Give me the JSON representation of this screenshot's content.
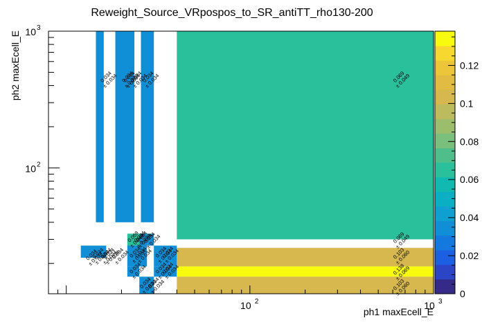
{
  "chart_data": {
    "type": "heatmap",
    "title": "Reweight_Source_VRpospos_to_SR_antiTT_rho130-200",
    "xlabel": "ph1 maxEcell_E",
    "ylabel": "ph2 maxEcell_E",
    "x_scale": "log",
    "y_scale": "log",
    "xlim": [
      8,
      1000
    ],
    "ylim": [
      12,
      1000
    ],
    "x_ticks": [
      {
        "value": 100,
        "label": "10",
        "exp": "2"
      },
      {
        "value": 1000,
        "label": "10",
        "exp": "3"
      }
    ],
    "y_ticks": [
      {
        "value": 100,
        "label": "10",
        "exp": "2"
      },
      {
        "value": 1000,
        "label": "10",
        "exp": "3"
      }
    ],
    "zlim": [
      0,
      0.138
    ],
    "z_ticks": [
      "0",
      "0.02",
      "0.04",
      "0.06",
      "0.08",
      "0.1",
      "0.12"
    ],
    "grid": false,
    "colorbar": "right",
    "cells": [
      {
        "x": [
          14.5,
          16.0
        ],
        "y": [
          40,
          1000
        ],
        "value": 0.034,
        "label": "0.034",
        "err": "± 0.034"
      },
      {
        "x": [
          18.5,
          23.5
        ],
        "y": [
          40,
          1000
        ],
        "value": 0.034,
        "label": "0.034",
        "err": "± 0.034"
      },
      {
        "x": [
          25.5,
          30.0
        ],
        "y": [
          40,
          1000
        ],
        "value": 0.034,
        "label": "0.034",
        "err": "± 0.034"
      },
      {
        "x": [
          40,
          1000
        ],
        "y": [
          30,
          1000
        ],
        "value": 0.069,
        "label": "0.069",
        "err": "± 0.049"
      },
      {
        "x": [
          12.0,
          16.5
        ],
        "y": [
          22,
          27
        ],
        "value": 0.034,
        "label": "0.034",
        "err": "± 0.034"
      },
      {
        "x": [
          21.5,
          25.0
        ],
        "y": [
          27,
          33
        ],
        "value": 0.069,
        "label": "0.069",
        "err": "± 0.049"
      },
      {
        "x": [
          25.0,
          27.5
        ],
        "y": [
          27,
          33
        ],
        "value": 0.034,
        "label": "0.034",
        "err": "± 0.034"
      },
      {
        "x": [
          27.5,
          30.0
        ],
        "y": [
          27,
          33
        ],
        "value": 0.034,
        "label": "0.034",
        "err": "± 0.034"
      },
      {
        "x": [
          21.5,
          27.5
        ],
        "y": [
          19,
          27
        ],
        "value": 0.034,
        "label": "0.034",
        "err": "± 0.034"
      },
      {
        "x": [
          30.0,
          40.0
        ],
        "y": [
          19,
          27
        ],
        "value": 0.034,
        "label": "0.034",
        "err": "± 0.034"
      },
      {
        "x": [
          21.5,
          25.0
        ],
        "y": [
          16,
          19
        ],
        "value": 0.034,
        "label": "0.034",
        "err": "± 0.034"
      },
      {
        "x": [
          30.0,
          40.0
        ],
        "y": [
          16,
          19
        ],
        "value": 0.034,
        "label": "0.034",
        "err": "± 0.034"
      },
      {
        "x": [
          25.0,
          30.0
        ],
        "y": [
          12,
          16
        ],
        "value": 0.034,
        "label": "0.034",
        "err": "± 0.034"
      },
      {
        "x": [
          40,
          1000
        ],
        "y": [
          19,
          26
        ],
        "value": 0.103,
        "label": "0.103",
        "err": "± 0.060"
      },
      {
        "x": [
          40,
          1000
        ],
        "y": [
          16,
          19
        ],
        "value": 0.138,
        "label": "0.138",
        "err": "± 0.069"
      },
      {
        "x": [
          40,
          1000
        ],
        "y": [
          12,
          16
        ],
        "value": 0.103,
        "label": "0.103",
        "err": "± 0.060"
      }
    ],
    "text_labels": [
      {
        "x": 16.8,
        "y": 450,
        "label": "0.034",
        "err": "± 0.034"
      },
      {
        "x": 22.5,
        "y": 450,
        "label": "0.034",
        "err": "± 0.034"
      },
      {
        "x": 24.5,
        "y": 450,
        "label": "0.034",
        "err": "± 0.034"
      },
      {
        "x": 28.5,
        "y": 450,
        "label": "0.034",
        "err": "± 0.034"
      },
      {
        "x": 22.0,
        "y": 450,
        "label": "0.034",
        "err": "± 0.034"
      },
      {
        "x": 14.0,
        "y": 22.5,
        "label": "0.034",
        "err": "± 0.034"
      },
      {
        "x": 15.2,
        "y": 23.0,
        "label": "0.034",
        "err": "± 0.034"
      },
      {
        "x": 16.8,
        "y": 23.0,
        "label": "0.034",
        "err": "± 0.034"
      },
      {
        "x": 17.4,
        "y": 23.0,
        "label": "0.034",
        "err": "± 0.034"
      },
      {
        "x": 19.5,
        "y": 23.0,
        "label": "0.034",
        "err": "± 0.034"
      },
      {
        "x": 23.6,
        "y": 30.5,
        "label": "0.069",
        "err": "± 0.049"
      },
      {
        "x": 25.6,
        "y": 30.5,
        "label": "0.034",
        "err": "± 0.034"
      },
      {
        "x": 26.2,
        "y": 30.5,
        "label": "0.034",
        "err": "± 0.034"
      },
      {
        "x": 29.0,
        "y": 30.0,
        "label": "0.034",
        "err": "± 0.034"
      },
      {
        "x": 24.2,
        "y": 23.5,
        "label": "0.034",
        "err": "± 0.034"
      },
      {
        "x": 26.0,
        "y": 23.5,
        "label": "0.034",
        "err": "± 0.034"
      },
      {
        "x": 33.5,
        "y": 23.5,
        "label": "0.034",
        "err": "± 0.034"
      },
      {
        "x": 36.5,
        "y": 23.5,
        "label": "0.034",
        "err": "± 0.034"
      },
      {
        "x": 24.2,
        "y": 18.0,
        "label": "0.034",
        "err": "± 0.034"
      },
      {
        "x": 33.5,
        "y": 18.0,
        "label": "0.034",
        "err": "± 0.034"
      },
      {
        "x": 36.5,
        "y": 18.0,
        "label": "0.034",
        "err": "± 0.034"
      },
      {
        "x": 27.5,
        "y": 14.0,
        "label": "0.034",
        "err": "± 0.034"
      },
      {
        "x": 30.5,
        "y": 14.0,
        "label": "0.034",
        "err": "± 0.034"
      },
      {
        "x": 660,
        "y": 450,
        "label": "0.069",
        "err": "± 0.049"
      },
      {
        "x": 660,
        "y": 30.0,
        "label": "0.069",
        "err": "± 0.049"
      },
      {
        "x": 660,
        "y": 23.0,
        "label": "0.103",
        "err": "± 0.060"
      },
      {
        "x": 660,
        "y": 17.6,
        "label": "0.138",
        "err": "± 0.069"
      },
      {
        "x": 660,
        "y": 13.6,
        "label": "0.103",
        "err": "± 0.060"
      }
    ]
  },
  "colors": {
    "palette": [
      "#352a87",
      "#2c44c6",
      "#1c5fe3",
      "#1479de",
      "#118fd6",
      "#0f9fd1",
      "#0aafc4",
      "#12b9b0",
      "#2ac09c",
      "#50be8b",
      "#7abf7c",
      "#9cbd6c",
      "#bcbb5d",
      "#d6b84e",
      "#e2bb42",
      "#edc53a",
      "#f6d82e",
      "#f9fb0e"
    ],
    "frame": "#000000"
  }
}
